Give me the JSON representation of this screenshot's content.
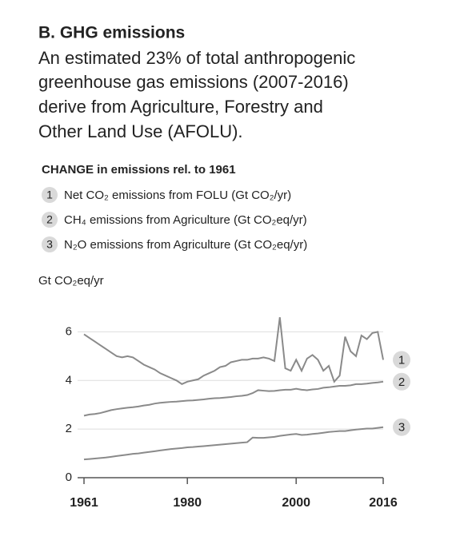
{
  "chart_data": {
    "type": "line",
    "title": "B. GHG emissions",
    "subtitle": [
      "An estimated 23% of total anthropogenic",
      "greenhouse gas emissions (2007-2016)",
      "derive from Agriculture, Forestry and",
      "Other Land Use (AFOLU)."
    ],
    "legend_title": "CHANGE in emissions rel. to 1961",
    "y_label": "Gt CO₂eq/yr",
    "x": [
      1961,
      1962,
      1963,
      1964,
      1965,
      1966,
      1967,
      1968,
      1969,
      1970,
      1971,
      1972,
      1973,
      1974,
      1975,
      1976,
      1977,
      1978,
      1979,
      1980,
      1981,
      1982,
      1983,
      1984,
      1985,
      1986,
      1987,
      1988,
      1989,
      1990,
      1991,
      1992,
      1993,
      1994,
      1995,
      1996,
      1997,
      1998,
      1999,
      2000,
      2001,
      2002,
      2003,
      2004,
      2005,
      2006,
      2007,
      2008,
      2009,
      2010,
      2011,
      2012,
      2013,
      2014,
      2015,
      2016
    ],
    "xlim": [
      1961,
      2016
    ],
    "xticks": [
      1961,
      1980,
      2000,
      2016
    ],
    "ylim": [
      0,
      7
    ],
    "yticks": [
      0,
      2,
      4,
      6
    ],
    "grid": true,
    "series": [
      {
        "label": "1",
        "name": "Net CO₂ emissions from FOLU (Gt CO₂/yr)",
        "color": "#8a8a8a",
        "values": [
          5.9,
          5.75,
          5.6,
          5.45,
          5.3,
          5.15,
          5.0,
          4.95,
          5.0,
          4.95,
          4.8,
          4.65,
          4.55,
          4.45,
          4.3,
          4.2,
          4.1,
          4.0,
          3.85,
          3.95,
          4.0,
          4.05,
          4.2,
          4.3,
          4.4,
          4.55,
          4.6,
          4.75,
          4.8,
          4.85,
          4.85,
          4.9,
          4.9,
          4.95,
          4.9,
          4.8,
          6.6,
          4.5,
          4.4,
          4.85,
          4.4,
          4.9,
          5.05,
          4.85,
          4.4,
          4.6,
          3.95,
          4.2,
          5.8,
          5.2,
          5.0,
          5.85,
          5.7,
          5.95,
          6.0,
          4.85
        ]
      },
      {
        "label": "2",
        "name": "CH₄ emissions from Agriculture (Gt CO₂eq/yr)",
        "color": "#8a8a8a",
        "values": [
          2.55,
          2.6,
          2.62,
          2.66,
          2.72,
          2.78,
          2.82,
          2.85,
          2.88,
          2.9,
          2.93,
          2.97,
          3.0,
          3.05,
          3.08,
          3.1,
          3.12,
          3.13,
          3.15,
          3.17,
          3.18,
          3.2,
          3.22,
          3.25,
          3.27,
          3.28,
          3.3,
          3.32,
          3.35,
          3.37,
          3.4,
          3.48,
          3.6,
          3.58,
          3.56,
          3.57,
          3.6,
          3.62,
          3.62,
          3.66,
          3.62,
          3.6,
          3.63,
          3.65,
          3.7,
          3.72,
          3.75,
          3.78,
          3.78,
          3.8,
          3.85,
          3.85,
          3.87,
          3.9,
          3.92,
          3.95
        ]
      },
      {
        "label": "3",
        "name": "N₂O emissions from Agriculture (Gt CO₂eq/yr)",
        "color": "#8a8a8a",
        "values": [
          0.75,
          0.77,
          0.79,
          0.81,
          0.83,
          0.86,
          0.89,
          0.92,
          0.95,
          0.98,
          1.0,
          1.03,
          1.06,
          1.09,
          1.12,
          1.15,
          1.18,
          1.2,
          1.22,
          1.25,
          1.26,
          1.28,
          1.3,
          1.32,
          1.34,
          1.36,
          1.38,
          1.4,
          1.42,
          1.44,
          1.46,
          1.65,
          1.64,
          1.64,
          1.66,
          1.68,
          1.72,
          1.75,
          1.78,
          1.8,
          1.76,
          1.77,
          1.8,
          1.82,
          1.85,
          1.88,
          1.9,
          1.92,
          1.92,
          1.95,
          1.98,
          2.0,
          2.02,
          2.02,
          2.05,
          2.08
        ]
      }
    ]
  }
}
